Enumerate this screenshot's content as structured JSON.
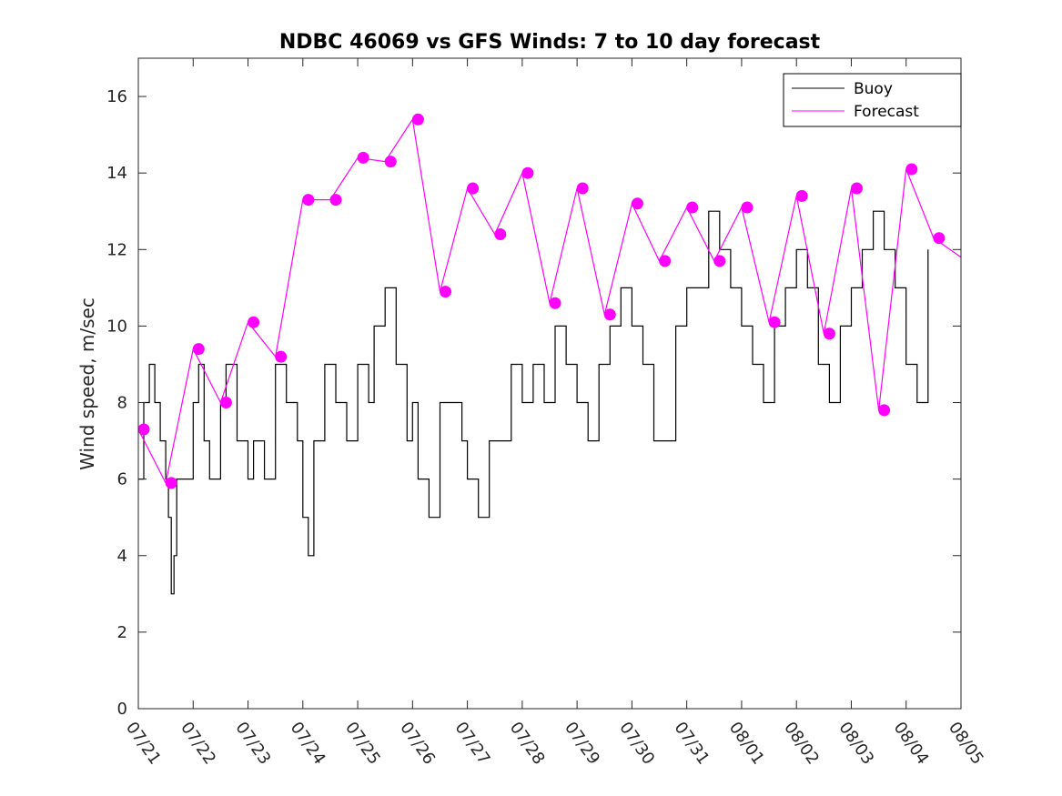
{
  "chart_data": {
    "type": "line",
    "title": "NDBC 46069 vs GFS Winds: 7 to 10 day forecast",
    "ylabel": "Wind speed, m/sec",
    "xlabel": "",
    "ylim": [
      0,
      17
    ],
    "yticks": [
      0,
      2,
      4,
      6,
      8,
      10,
      12,
      14,
      16
    ],
    "xlim_days": [
      0,
      15
    ],
    "xtick_labels": [
      "07/21",
      "07/22",
      "07/23",
      "07/24",
      "07/25",
      "07/26",
      "07/27",
      "07/28",
      "07/29",
      "07/30",
      "07/31",
      "08/01",
      "08/02",
      "08/03",
      "08/04",
      "08/05"
    ],
    "legend": {
      "placement": "top-right",
      "entries": [
        "Buoy",
        "Forecast"
      ]
    },
    "colors": {
      "buoy": "#000000",
      "forecast": "#ff00ff"
    },
    "series": [
      {
        "name": "Buoy",
        "x_days": [
          0,
          0.1,
          0.2,
          0.3,
          0.4,
          0.5,
          0.55,
          0.6,
          0.65,
          0.7,
          0.8,
          0.9,
          1.0,
          1.1,
          1.2,
          1.3,
          1.4,
          1.5,
          1.6,
          1.8,
          2.0,
          2.1,
          2.2,
          2.3,
          2.5,
          2.7,
          2.9,
          3.0,
          3.1,
          3.2,
          3.4,
          3.6,
          3.8,
          4.0,
          4.2,
          4.3,
          4.5,
          4.7,
          4.9,
          5.0,
          5.1,
          5.3,
          5.5,
          5.7,
          5.9,
          6.0,
          6.2,
          6.4,
          6.6,
          6.8,
          7.0,
          7.2,
          7.4,
          7.6,
          7.8,
          8.0,
          8.2,
          8.4,
          8.6,
          8.8,
          9.0,
          9.2,
          9.4,
          9.6,
          9.8,
          10.0,
          10.2,
          10.4,
          10.6,
          10.8,
          11.0,
          11.2,
          11.4,
          11.6,
          11.8,
          12.0,
          12.2,
          12.4,
          12.6,
          12.8,
          13.0,
          13.2,
          13.4,
          13.6,
          13.8,
          14.0,
          14.2,
          14.4
        ],
        "values": [
          6,
          8,
          9,
          8,
          7,
          6,
          5,
          3,
          4,
          6,
          6,
          6,
          8,
          9,
          7,
          6,
          6,
          8,
          9,
          7,
          6,
          7,
          7,
          6,
          9,
          8,
          7,
          5,
          4,
          7,
          9,
          8,
          7,
          9,
          8,
          10,
          11,
          9,
          7,
          8,
          6,
          5,
          8,
          8,
          7,
          6,
          5,
          7,
          7,
          9,
          8,
          9,
          8,
          10,
          9,
          8,
          7,
          9,
          10,
          11,
          10,
          9,
          7,
          7,
          10,
          11,
          11,
          13,
          12,
          11,
          10,
          9,
          8,
          10,
          11,
          12,
          11,
          9,
          8,
          10,
          11,
          12,
          13,
          12,
          11,
          9,
          8,
          12
        ]
      },
      {
        "name": "Forecast",
        "x_days": [
          0,
          0.5,
          1.0,
          1.5,
          2.0,
          2.5,
          3.0,
          3.5,
          4.0,
          4.5,
          5.0,
          5.5,
          6.0,
          6.5,
          7.0,
          7.5,
          8.0,
          8.5,
          9.0,
          9.5,
          10.0,
          10.5,
          11.0,
          11.5,
          12.0,
          12.5,
          13.0,
          13.5,
          14.0,
          14.5,
          15.0
        ],
        "values": [
          7.3,
          5.9,
          9.4,
          8.0,
          10.1,
          9.2,
          13.3,
          13.3,
          14.4,
          14.3,
          15.4,
          10.9,
          13.6,
          12.4,
          14.0,
          10.6,
          13.6,
          10.3,
          13.2,
          11.7,
          13.1,
          11.7,
          13.1,
          10.1,
          13.4,
          9.8,
          13.6,
          7.8,
          14.1,
          12.3,
          11.8
        ]
      }
    ],
    "forecast_markers": {
      "x_days": [
        0.1,
        0.6,
        1.1,
        1.6,
        2.1,
        2.6,
        3.1,
        3.6,
        4.1,
        4.6,
        5.1,
        5.6,
        6.1,
        6.6,
        7.1,
        7.6,
        8.1,
        8.6,
        9.1,
        9.6,
        10.1,
        10.6,
        11.1,
        11.6,
        12.1,
        12.6,
        13.1,
        13.6,
        14.1,
        14.6
      ],
      "values": [
        7.3,
        5.9,
        9.4,
        8.0,
        10.1,
        9.2,
        13.3,
        13.3,
        14.4,
        14.3,
        15.4,
        10.9,
        13.6,
        12.4,
        14.0,
        10.6,
        13.6,
        10.3,
        13.2,
        11.7,
        13.1,
        11.7,
        13.1,
        10.1,
        13.4,
        9.8,
        13.6,
        7.8,
        14.1,
        12.3
      ]
    }
  }
}
